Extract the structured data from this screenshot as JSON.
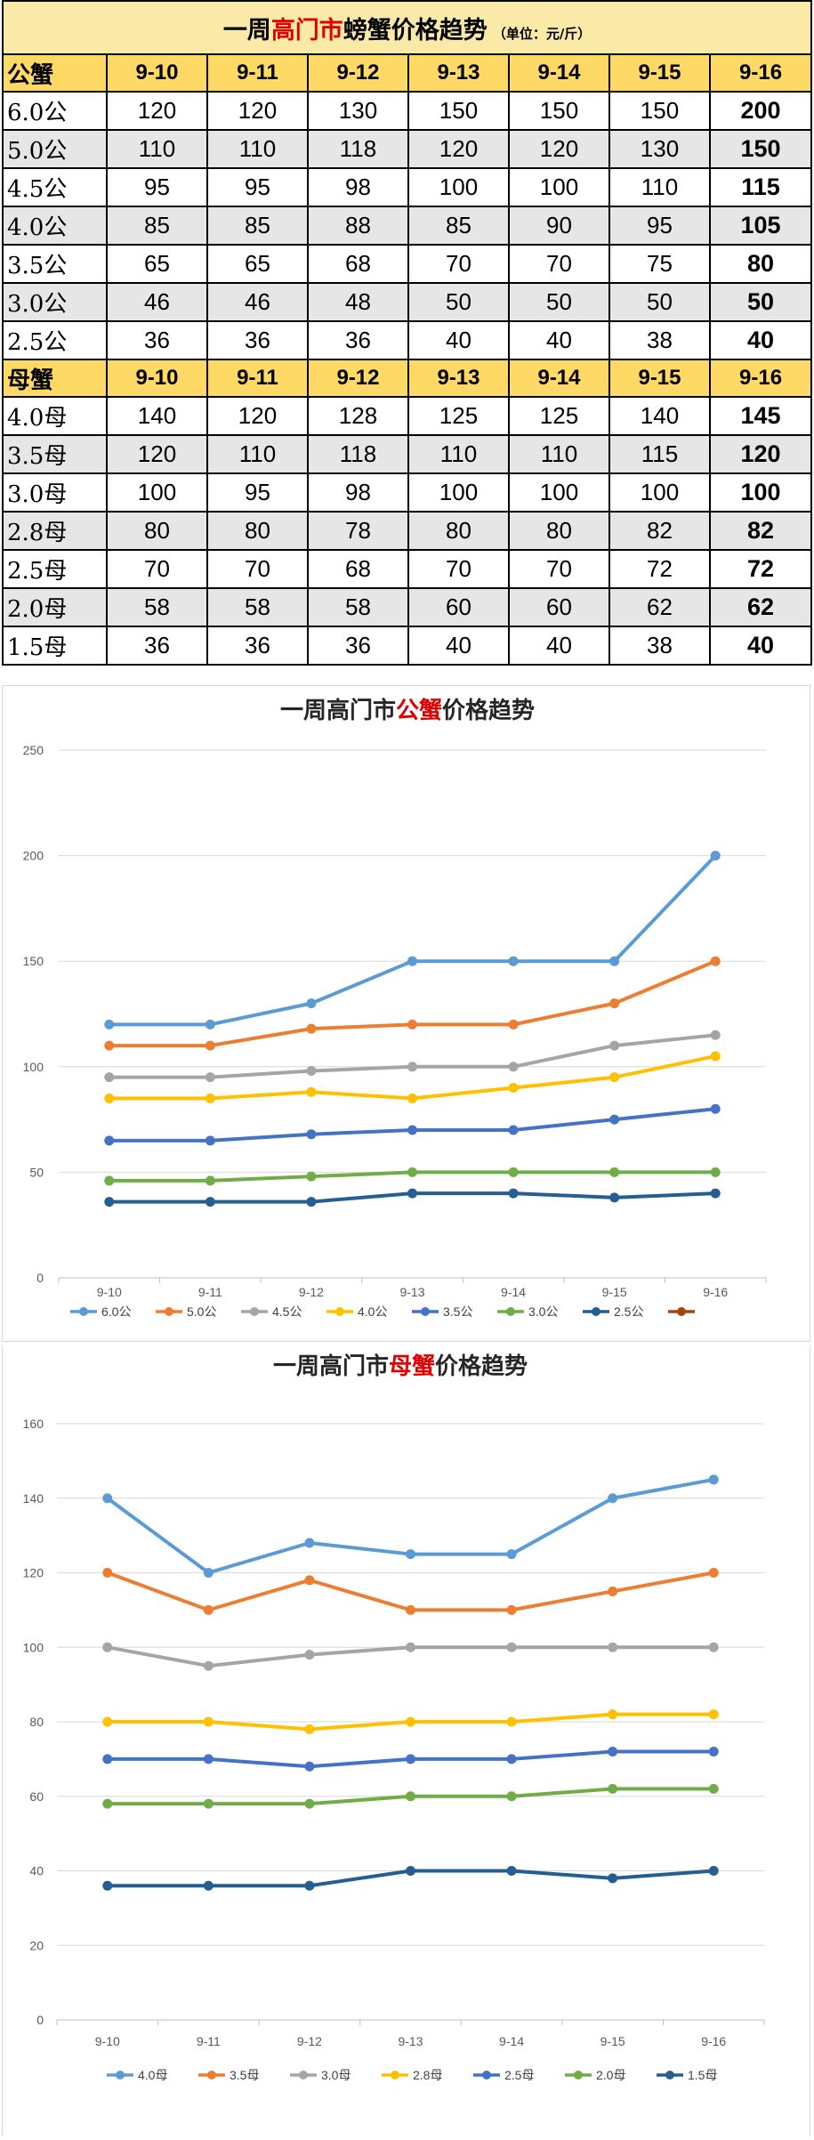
{
  "table": {
    "title_a": "一周",
    "title_b": "高门市",
    "title_c": "螃蟹价格趋势",
    "unit": "（单位：元/斤）",
    "male": {
      "label": "公蟹",
      "dates": [
        "9-10",
        "9-11",
        "9-12",
        "9-13",
        "9-14",
        "9-15",
        "9-16"
      ],
      "rows": [
        {
          "label": "6.0公",
          "values": [
            "120",
            "120",
            "130",
            "150",
            "150",
            "150",
            "200"
          ]
        },
        {
          "label": "5.0公",
          "values": [
            "110",
            "110",
            "118",
            "120",
            "120",
            "130",
            "150"
          ]
        },
        {
          "label": "4.5公",
          "values": [
            "95",
            "95",
            "98",
            "100",
            "100",
            "110",
            "115"
          ]
        },
        {
          "label": "4.0公",
          "values": [
            "85",
            "85",
            "88",
            "85",
            "90",
            "95",
            "105"
          ]
        },
        {
          "label": "3.5公",
          "values": [
            "65",
            "65",
            "68",
            "70",
            "70",
            "75",
            "80"
          ]
        },
        {
          "label": "3.0公",
          "values": [
            "46",
            "46",
            "48",
            "50",
            "50",
            "50",
            "50"
          ]
        },
        {
          "label": "2.5公",
          "values": [
            "36",
            "36",
            "36",
            "40",
            "40",
            "38",
            "40"
          ]
        }
      ]
    },
    "female": {
      "label": "母蟹",
      "dates": [
        "9-10",
        "9-11",
        "9-12",
        "9-13",
        "9-14",
        "9-15",
        "9-16"
      ],
      "rows": [
        {
          "label": "4.0母",
          "values": [
            "140",
            "120",
            "128",
            "125",
            "125",
            "140",
            "145"
          ]
        },
        {
          "label": "3.5母",
          "values": [
            "120",
            "110",
            "118",
            "110",
            "110",
            "115",
            "120"
          ]
        },
        {
          "label": "3.0母",
          "values": [
            "100",
            "95",
            "98",
            "100",
            "100",
            "100",
            "100"
          ]
        },
        {
          "label": "2.8母",
          "values": [
            "80",
            "80",
            "78",
            "80",
            "80",
            "82",
            "82"
          ]
        },
        {
          "label": "2.5母",
          "values": [
            "70",
            "70",
            "68",
            "70",
            "70",
            "72",
            "72"
          ]
        },
        {
          "label": "2.0母",
          "values": [
            "58",
            "58",
            "58",
            "60",
            "60",
            "62",
            "62"
          ]
        },
        {
          "label": "1.5母",
          "values": [
            "36",
            "36",
            "36",
            "40",
            "40",
            "38",
            "40"
          ]
        }
      ]
    }
  },
  "chart_data": [
    {
      "type": "line",
      "title_a": "一周高门市",
      "title_b": "公蟹",
      "title_c": "价格趋势",
      "title_highlight_color": "#e00000",
      "x": [
        "9-10",
        "9-11",
        "9-12",
        "9-13",
        "9-14",
        "9-15",
        "9-16"
      ],
      "ylim": [
        0,
        250
      ],
      "yticks": [
        0,
        50,
        100,
        150,
        200,
        250
      ],
      "grid": true,
      "legend_position": "bottom",
      "series": [
        {
          "name": "6.0公",
          "color": "#5b9bd5",
          "values": [
            120,
            120,
            130,
            150,
            150,
            150,
            200
          ]
        },
        {
          "name": "5.0公",
          "color": "#ed7d31",
          "values": [
            110,
            110,
            118,
            120,
            120,
            130,
            150
          ]
        },
        {
          "name": "4.5公",
          "color": "#a5a5a5",
          "values": [
            95,
            95,
            98,
            100,
            100,
            110,
            115
          ]
        },
        {
          "name": "4.0公",
          "color": "#ffc000",
          "values": [
            85,
            85,
            88,
            85,
            90,
            95,
            105
          ]
        },
        {
          "name": "3.5公",
          "color": "#4472c4",
          "values": [
            65,
            65,
            68,
            70,
            70,
            75,
            80
          ]
        },
        {
          "name": "3.0公",
          "color": "#70ad47",
          "values": [
            46,
            46,
            48,
            50,
            50,
            50,
            50
          ]
        },
        {
          "name": "2.5公",
          "color": "#255e91",
          "values": [
            36,
            36,
            36,
            40,
            40,
            38,
            40
          ]
        }
      ],
      "extra_legend_color": "#9e480e"
    },
    {
      "type": "line",
      "title_a": "一周高门市",
      "title_b": "母蟹",
      "title_c": "价格趋势",
      "title_highlight_color": "#e00000",
      "x": [
        "9-10",
        "9-11",
        "9-12",
        "9-13",
        "9-14",
        "9-15",
        "9-16"
      ],
      "ylim": [
        0,
        160
      ],
      "yticks": [
        0,
        20,
        40,
        60,
        80,
        100,
        120,
        140,
        160
      ],
      "grid": true,
      "legend_position": "bottom",
      "series": [
        {
          "name": "4.0母",
          "color": "#5b9bd5",
          "values": [
            140,
            120,
            128,
            125,
            125,
            140,
            145
          ]
        },
        {
          "name": "3.5母",
          "color": "#ed7d31",
          "values": [
            120,
            110,
            118,
            110,
            110,
            115,
            120
          ]
        },
        {
          "name": "3.0母",
          "color": "#a5a5a5",
          "values": [
            100,
            95,
            98,
            100,
            100,
            100,
            100
          ]
        },
        {
          "name": "2.8母",
          "color": "#ffc000",
          "values": [
            80,
            80,
            78,
            80,
            80,
            82,
            82
          ]
        },
        {
          "name": "2.5母",
          "color": "#4472c4",
          "values": [
            70,
            70,
            68,
            70,
            70,
            72,
            72
          ]
        },
        {
          "name": "2.0母",
          "color": "#70ad47",
          "values": [
            58,
            58,
            58,
            60,
            60,
            62,
            62
          ]
        },
        {
          "name": "1.5母",
          "color": "#255e91",
          "values": [
            36,
            36,
            36,
            40,
            40,
            38,
            40
          ]
        }
      ]
    }
  ]
}
